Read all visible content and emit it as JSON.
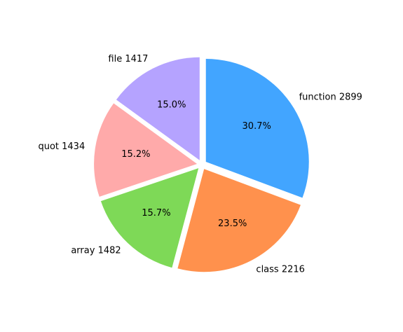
{
  "chart_data": {
    "type": "pie",
    "title": "",
    "start_angle_deg": 90,
    "direction": "clockwise",
    "exploded": true,
    "slices": [
      {
        "label": "function 2899",
        "value": 2899,
        "percent_label": "30.7%",
        "color": "#42a5ff"
      },
      {
        "label": "class 2216",
        "value": 2216,
        "percent_label": "23.5%",
        "color": "#ff914d"
      },
      {
        "label": "array 1482",
        "value": 1482,
        "percent_label": "15.7%",
        "color": "#7ed957"
      },
      {
        "label": "quot 1434",
        "value": 1434,
        "percent_label": "15.2%",
        "color": "#ffaaaa"
      },
      {
        "label": "file 1417",
        "value": 1417,
        "percent_label": "15.0%",
        "color": "#b5a3ff"
      }
    ]
  }
}
